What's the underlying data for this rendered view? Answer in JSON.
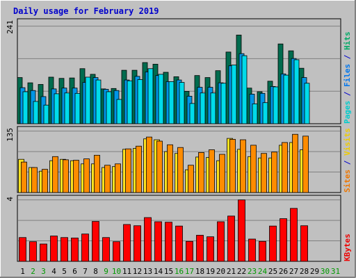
{
  "chart_data": {
    "type": "bar",
    "title": "Daily usage for February 2019",
    "days": [
      "1",
      "2",
      "3",
      "4",
      "5",
      "6",
      "7",
      "8",
      "9",
      "10",
      "11",
      "12",
      "13",
      "14",
      "15",
      "16",
      "17",
      "18",
      "19",
      "20",
      "21",
      "22",
      "23",
      "24",
      "25",
      "26",
      "27",
      "28",
      "29",
      "30",
      "31"
    ],
    "weekend_days": [
      2,
      3,
      9,
      10,
      16,
      17,
      23,
      24,
      30,
      31
    ],
    "panels": [
      {
        "id": "hits-files-pages",
        "max_label": "241",
        "max": 241,
        "right_labels": [
          {
            "text": "Pages",
            "color": "#00cccc"
          },
          {
            "text": " / ",
            "color": "#0000cc"
          },
          {
            "text": "Files",
            "color": "#0077ee"
          },
          {
            "text": " / ",
            "color": "#0000cc"
          },
          {
            "text": "Hits",
            "color": "#00aa66"
          }
        ],
        "series": [
          {
            "name": "Hits",
            "color": "#006b4e",
            "values": [
              114,
              101,
              97,
              115,
              112,
              113,
              136,
              122,
              86,
              87,
              132,
              132,
              151,
              147,
              127,
              116,
              80,
              119,
              114,
              131,
              177,
              219,
              88,
              79,
              105,
              197,
              180,
              137,
              0,
              0,
              0
            ]
          },
          {
            "name": "Files",
            "color": "#0095e6",
            "values": [
              89,
              82,
              67,
              86,
              88,
              88,
              102,
              114,
              85,
              82,
              108,
              117,
              128,
              119,
              104,
              108,
              68,
              90,
              90,
              101,
              143,
              173,
              73,
              75,
              92,
              123,
              161,
              114,
              0,
              0,
              0
            ]
          },
          {
            "name": "Pages",
            "color": "#00dbea",
            "values": [
              79,
              55,
              46,
              74,
              76,
              75,
              115,
              108,
              79,
              60,
              106,
              109,
              136,
              122,
              104,
              102,
              50,
              76,
              76,
              100,
              145,
              168,
              49,
              52,
              91,
              120,
              158,
              100,
              0,
              0,
              0
            ]
          }
        ]
      },
      {
        "id": "visits-sites",
        "max_label": "135",
        "max": 135,
        "right_labels": [
          {
            "text": "Sites",
            "color": "#ee7700"
          },
          {
            "text": " / ",
            "color": "#0000cc"
          },
          {
            "text": "Visits",
            "color": "#eecc00"
          }
        ],
        "series": [
          {
            "name": "Visits",
            "color": "#ffe31f",
            "values": [
              73,
              55,
              47,
              70,
              73,
              70,
              63,
              63,
              55,
              57,
              95,
              97,
              118,
              116,
              90,
              86,
              50,
              78,
              77,
              70,
              119,
              95,
              79,
              76,
              76,
              104,
              110,
              94,
              0,
              0,
              0
            ]
          },
          {
            "name": "Sites",
            "color": "#ff8c00",
            "values": [
              67,
              55,
              51,
              79,
              72,
              71,
              74,
              82,
              60,
              63,
              96,
              102,
              122,
              113,
              105,
              99,
              60,
              88,
              94,
              84,
              117,
              116,
              104,
              86,
              89,
              110,
              128,
              124,
              0,
              0,
              0
            ]
          }
        ]
      },
      {
        "id": "kbytes",
        "max_label": "4",
        "max": 4,
        "right_labels": [
          {
            "text": "KBytes",
            "color": "#ee0000"
          }
        ],
        "series": [
          {
            "name": "KBytes",
            "color": "#ff0000",
            "values": [
              1.55,
              1.28,
              1.13,
              1.65,
              1.55,
              1.52,
              1.78,
              2.6,
              1.55,
              1.28,
              2.4,
              2.32,
              2.85,
              2.58,
              2.55,
              2.3,
              1.3,
              1.7,
              1.6,
              2.58,
              2.95,
              4.0,
              1.45,
              1.3,
              2.3,
              2.78,
              3.45,
              2.32,
              0,
              0,
              0
            ]
          }
        ]
      }
    ],
    "day_label_color": "#000000",
    "weekend_label_color": "#009900",
    "colors": {
      "background": "#c0c0c0",
      "gridline": "#808080",
      "title": "#0000cc"
    }
  }
}
